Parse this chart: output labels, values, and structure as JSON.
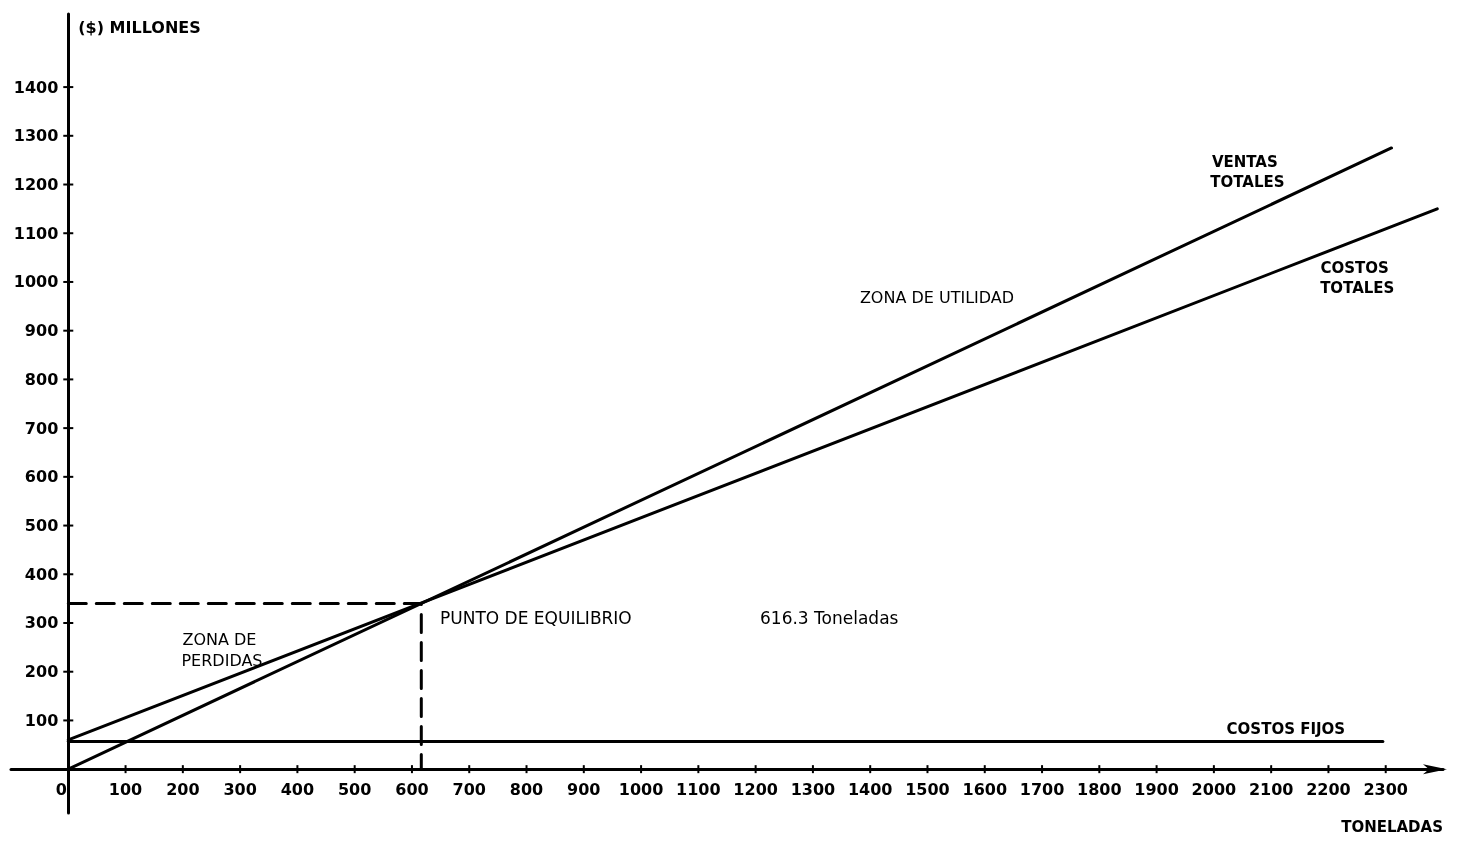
{
  "chart_data": {
    "type": "line",
    "xlabel": "TONELADAS",
    "ylabel": "($) MILLONES",
    "series": [
      {
        "name": "VENTAS TOTALES",
        "color": "#000000",
        "x": [
          0,
          2310
        ],
        "values": [
          0,
          1275
        ]
      },
      {
        "name": "COSTOS TOTALES",
        "color": "#000000",
        "x": [
          0,
          2390
        ],
        "values": [
          60,
          1150
        ]
      },
      {
        "name": "COSTOS FIJOS",
        "color": "#000000",
        "x": [
          0,
          2295
        ],
        "values": [
          57,
          57
        ]
      },
      {
        "color": "#000000",
        "x": [
          0,
          616.3,
          616.3
        ],
        "values": [
          340,
          340,
          0
        ],
        "line_style": "dashed"
      }
    ],
    "annotations": [
      "ZONA DE UTILIDAD",
      "ZONA DE PERDIDAS",
      "PUNTO DE EQUILIBRIO",
      "616.3 Toneladas"
    ],
    "xlim": [
      -100,
      2400
    ],
    "ylim": [
      -90,
      1550
    ],
    "xticks": [
      0,
      100,
      200,
      300,
      400,
      500,
      600,
      700,
      800,
      900,
      1000,
      1100,
      1200,
      1300,
      1400,
      1500,
      1600,
      1700,
      1800,
      1900,
      2000,
      2100,
      2200,
      2300
    ],
    "yticks": [
      100,
      200,
      300,
      400,
      500,
      600,
      700,
      800,
      900,
      1000,
      1100,
      1200,
      1300,
      1400
    ],
    "marker": "none",
    "line_style": "solid"
  }
}
